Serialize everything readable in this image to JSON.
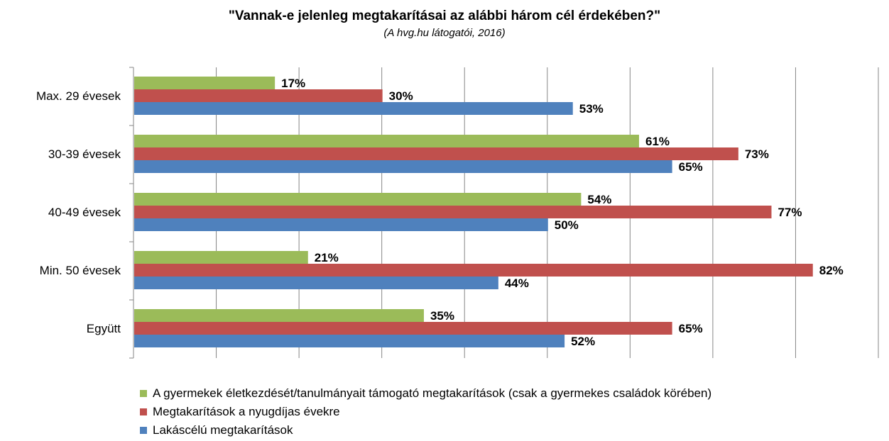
{
  "chart_data": {
    "type": "bar",
    "orientation": "horizontal",
    "title": "\"Vannak-e jelenleg megtakarításai az alábbi három cél érdekében?\"",
    "subtitle": "(A hvg.hu látogatói, 2016)",
    "categories": [
      "Max. 29 évesek",
      "30-39 évesek",
      "40-49 évesek",
      "Min. 50 évesek",
      "Együtt"
    ],
    "series": [
      {
        "name": "A gyermekek életkezdését/tanulmányait támogató megtakarítások (csak a gyermekes családok körében)",
        "color": "#9bbb59",
        "values": [
          17,
          61,
          54,
          21,
          35
        ],
        "labels": [
          "17%",
          "61%",
          "54%",
          "21%",
          "35%"
        ]
      },
      {
        "name": "Megtakarítások a nyugdíjas évekre",
        "color": "#c0504d",
        "values": [
          30,
          73,
          77,
          82,
          65
        ],
        "labels": [
          "30%",
          "73%",
          "77%",
          "82%",
          "65%"
        ]
      },
      {
        "name": "Lakáscélú megtakarítások",
        "color": "#4f81bd",
        "values": [
          53,
          65,
          50,
          44,
          52
        ],
        "labels": [
          "53%",
          "65%",
          "50%",
          "44%",
          "52%"
        ]
      }
    ],
    "xlim": [
      0,
      90
    ],
    "grid": true,
    "legend_position": "bottom-left"
  }
}
